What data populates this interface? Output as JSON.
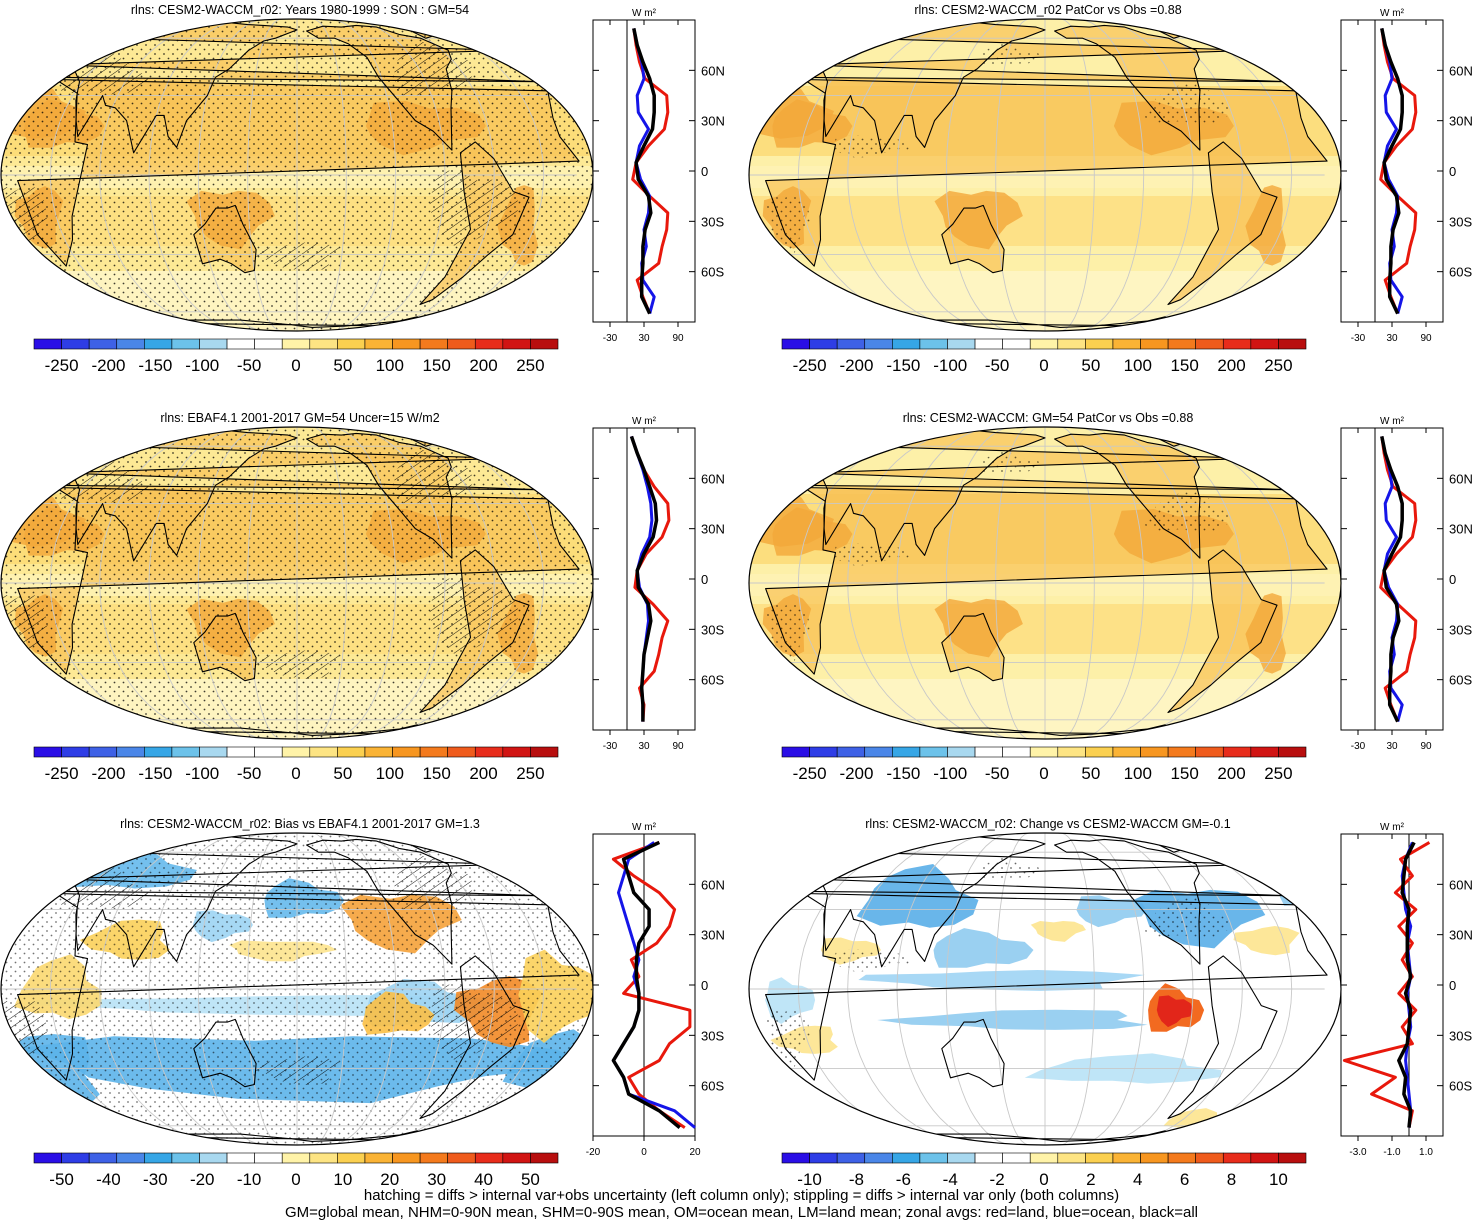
{
  "panels": [
    {
      "id": "p1",
      "title": "rlns: CESM2-WACCM_r02: Years 1980-1999 : SON : GM=54",
      "map_style": "abs",
      "hatching": true,
      "colorbar_labels": [
        "-250",
        "-200",
        "-150",
        "-100",
        "-50",
        "0",
        "50",
        "100",
        "150",
        "200",
        "250"
      ],
      "zonal": {
        "unit": "W m²",
        "xticks": [
          "-30",
          "30",
          "90"
        ],
        "xvals": [
          -30,
          30,
          90
        ],
        "xlim": [
          -60,
          120
        ]
      }
    },
    {
      "id": "p2",
      "title": "rlns: CESM2-WACCM_r02 PatCor vs Obs =0.88",
      "map_style": "abs",
      "hatching": false,
      "colorbar_labels": [
        "-250",
        "-200",
        "-150",
        "-100",
        "-50",
        "0",
        "50",
        "100",
        "150",
        "200",
        "250"
      ],
      "zonal": {
        "unit": "W m²",
        "xticks": [
          "-30",
          "30",
          "90"
        ],
        "xvals": [
          -30,
          30,
          90
        ],
        "xlim": [
          -60,
          120
        ]
      }
    },
    {
      "id": "p3",
      "title": "rlns: EBAF4.1 2001-2017 GM=54 Uncer=15 W/m2",
      "map_style": "abs",
      "hatching": true,
      "colorbar_labels": [
        "-250",
        "-200",
        "-150",
        "-100",
        "-50",
        "0",
        "50",
        "100",
        "150",
        "200",
        "250"
      ],
      "zonal": {
        "unit": "W m²",
        "xticks": [
          "-30",
          "30",
          "90"
        ],
        "xvals": [
          -30,
          30,
          90
        ],
        "xlim": [
          -60,
          120
        ]
      }
    },
    {
      "id": "p4",
      "title": "rlns: CESM2-WACCM: GM=54 PatCor vs Obs =0.88",
      "map_style": "abs",
      "hatching": false,
      "colorbar_labels": [
        "-250",
        "-200",
        "-150",
        "-100",
        "-50",
        "0",
        "50",
        "100",
        "150",
        "200",
        "250"
      ],
      "zonal": {
        "unit": "W m²",
        "xticks": [
          "-30",
          "30",
          "90"
        ],
        "xvals": [
          -30,
          30,
          90
        ],
        "xlim": [
          -60,
          120
        ]
      }
    },
    {
      "id": "p5",
      "title": "rlns: CESM2-WACCM_r02: Bias vs EBAF4.1 2001-2017  GM=1.3",
      "map_style": "bias",
      "hatching": true,
      "colorbar_labels": [
        "-50",
        "-40",
        "-30",
        "-20",
        "-10",
        "0",
        "10",
        "20",
        "30",
        "40",
        "50"
      ],
      "zonal": {
        "unit": "W m²",
        "xticks": [
          "-20",
          "0",
          "20"
        ],
        "xvals": [
          -20,
          0,
          20
        ],
        "xlim": [
          -20,
          20
        ]
      }
    },
    {
      "id": "p6",
      "title": "rlns: CESM2-WACCM_r02: Change vs CESM2-WACCM GM=-0.1",
      "map_style": "change",
      "hatching": false,
      "colorbar_labels": [
        "-10",
        "-8",
        "-6",
        "-4",
        "-2",
        "0",
        "2",
        "4",
        "6",
        "8",
        "10"
      ],
      "zonal": {
        "unit": "W m²",
        "xticks": [
          "-3.0",
          "-1.0",
          "1.0"
        ],
        "xvals": [
          -3,
          -1,
          1
        ],
        "xlim": [
          -4,
          2
        ]
      }
    }
  ],
  "lat_labels": [
    "60N",
    "30N",
    "0",
    "30S",
    "60S"
  ],
  "colorbar_colors": [
    "#2a0ee6",
    "#2e3de6",
    "#3e61e6",
    "#4a86e8",
    "#36a6e6",
    "#6cc2ea",
    "#a8d8ef",
    "#ffffff",
    "#ffffff",
    "#fff3a8",
    "#fde483",
    "#fbd050",
    "#fab335",
    "#f79620",
    "#f47a1d",
    "#ef5b1c",
    "#e82c1b",
    "#d11413",
    "#b80e0e"
  ],
  "series_colors": {
    "land": "#e8180c",
    "ocean": "#1515e8",
    "all": "#000000"
  },
  "footer": [
    "hatching = diffs > internal var+obs uncertainty (left column only); stippling = diffs > internal var only (both columns)",
    "GM=global mean, NHM=0-90N mean, SHM=0-90S mean, OM=ocean mean, LM=land mean; zonal avgs: red=land, blue=ocean, black=all"
  ],
  "chart_data": [
    {
      "type": "line",
      "title": "rlns: CESM2-WACCM_r02: Years 1980-1999 : SON : GM=54",
      "xlabel": "W m²",
      "x_ticks": [
        -30,
        30,
        90
      ],
      "y_ticks": [
        "60N",
        "30N",
        "0",
        "30S",
        "60S"
      ],
      "lat": [
        85,
        75,
        65,
        55,
        45,
        35,
        25,
        15,
        5,
        -5,
        -15,
        -25,
        -35,
        -45,
        -55,
        -65,
        -75,
        -85
      ],
      "series": [
        {
          "name": "land",
          "values": [
            12,
            16,
            22,
            32,
            70,
            72,
            66,
            38,
            16,
            10,
            40,
            72,
            70,
            62,
            56,
            18,
            28,
            40
          ]
        },
        {
          "name": "ocean",
          "values": [
            12,
            18,
            26,
            30,
            18,
            20,
            38,
            22,
            16,
            24,
            40,
            38,
            30,
            34,
            26,
            28,
            48,
            40
          ]
        },
        {
          "name": "all",
          "values": [
            12,
            18,
            28,
            40,
            48,
            48,
            45,
            30,
            16,
            20,
            38,
            42,
            32,
            28,
            28,
            26,
            26,
            40
          ]
        }
      ]
    },
    {
      "type": "line",
      "title": "rlns: CESM2-WACCM_r02 PatCor vs Obs =0.88",
      "xlabel": "W m²",
      "x_ticks": [
        -30,
        30,
        90
      ],
      "y_ticks": [
        "60N",
        "30N",
        "0",
        "30S",
        "60S"
      ],
      "lat": [
        85,
        75,
        65,
        55,
        45,
        35,
        25,
        15,
        5,
        -5,
        -15,
        -25,
        -35,
        -45,
        -55,
        -65,
        -75,
        -85
      ],
      "series": [
        {
          "name": "land",
          "values": [
            12,
            16,
            22,
            32,
            70,
            72,
            66,
            38,
            16,
            10,
            40,
            72,
            70,
            62,
            56,
            18,
            28,
            40
          ]
        },
        {
          "name": "ocean",
          "values": [
            12,
            18,
            26,
            30,
            18,
            20,
            38,
            22,
            16,
            24,
            40,
            38,
            30,
            34,
            26,
            28,
            48,
            40
          ]
        },
        {
          "name": "all",
          "values": [
            12,
            18,
            28,
            40,
            48,
            48,
            45,
            30,
            16,
            20,
            38,
            42,
            32,
            28,
            28,
            26,
            26,
            40
          ]
        }
      ]
    },
    {
      "type": "line",
      "title": "rlns: EBAF4.1 2001-2017 GM=54 Uncer=15 W/m2",
      "xlabel": "W m²",
      "x_ticks": [
        -30,
        30,
        90
      ],
      "y_ticks": [
        "60N",
        "30N",
        "0",
        "30S",
        "60S"
      ],
      "lat": [
        85,
        75,
        65,
        55,
        45,
        35,
        25,
        15,
        5,
        -5,
        -15,
        -25,
        -35,
        -45,
        -55,
        -65,
        -75,
        -85
      ],
      "series": [
        {
          "name": "land",
          "values": [
            8,
            18,
            30,
            48,
            72,
            74,
            62,
            34,
            18,
            14,
            46,
            72,
            62,
            56,
            48,
            22,
            30,
            28
          ]
        },
        {
          "name": "ocean",
          "values": [
            8,
            18,
            28,
            36,
            42,
            44,
            40,
            26,
            18,
            22,
            36,
            38,
            34,
            30,
            28,
            26,
            28,
            28
          ]
        },
        {
          "name": "all",
          "values": [
            8,
            18,
            30,
            40,
            50,
            52,
            46,
            30,
            18,
            20,
            38,
            42,
            36,
            30,
            28,
            26,
            28,
            28
          ]
        }
      ]
    },
    {
      "type": "line",
      "title": "rlns: CESM2-WACCM: GM=54 PatCor vs Obs =0.88",
      "xlabel": "W m²",
      "x_ticks": [
        -30,
        30,
        90
      ],
      "y_ticks": [
        "60N",
        "30N",
        "0",
        "30S",
        "60S"
      ],
      "lat": [
        85,
        75,
        65,
        55,
        45,
        35,
        25,
        15,
        5,
        -5,
        -15,
        -25,
        -35,
        -45,
        -55,
        -65,
        -75,
        -85
      ],
      "series": [
        {
          "name": "land",
          "values": [
            12,
            16,
            22,
            32,
            70,
            72,
            66,
            38,
            16,
            10,
            40,
            72,
            70,
            62,
            56,
            18,
            28,
            40
          ]
        },
        {
          "name": "ocean",
          "values": [
            12,
            18,
            26,
            30,
            18,
            20,
            38,
            22,
            16,
            24,
            40,
            38,
            30,
            34,
            26,
            28,
            48,
            40
          ]
        },
        {
          "name": "all",
          "values": [
            12,
            18,
            28,
            40,
            48,
            48,
            45,
            30,
            16,
            20,
            38,
            42,
            32,
            28,
            28,
            26,
            26,
            40
          ]
        }
      ]
    },
    {
      "type": "line",
      "title": "rlns: CESM2-WACCM_r02: Bias vs EBAF4.1 2001-2017  GM=1.3",
      "xlabel": "W m²",
      "x_ticks": [
        -20,
        0,
        20
      ],
      "y_ticks": [
        "60N",
        "30N",
        "0",
        "30S",
        "60S"
      ],
      "lat": [
        85,
        75,
        65,
        55,
        45,
        35,
        25,
        15,
        5,
        -5,
        -15,
        -25,
        -35,
        -45,
        -55,
        -65,
        -75,
        -85
      ],
      "series": [
        {
          "name": "land",
          "values": [
            6,
            -12,
            -4,
            6,
            12,
            10,
            5,
            -5,
            -2,
            -8,
            18,
            18,
            10,
            6,
            -6,
            -2,
            6,
            16
          ]
        },
        {
          "name": "ocean",
          "values": [
            4,
            -6,
            -8,
            -10,
            -8,
            -6,
            -4,
            -2,
            -4,
            -2,
            -2,
            -4,
            -8,
            -12,
            -8,
            -6,
            12,
            20
          ]
        },
        {
          "name": "all",
          "values": [
            6,
            -8,
            -6,
            -4,
            2,
            2,
            -2,
            -3,
            -3,
            -2,
            -2,
            -4,
            -8,
            -12,
            -8,
            -6,
            6,
            14
          ]
        }
      ]
    },
    {
      "type": "line",
      "title": "rlns: CESM2-WACCM_r02: Change vs CESM2-WACCM GM=-0.1",
      "xlabel": "W m²",
      "x_ticks": [
        -3,
        -1,
        1
      ],
      "y_ticks": [
        "60N",
        "30N",
        "0",
        "30S",
        "60S"
      ],
      "lat": [
        85,
        75,
        65,
        55,
        45,
        35,
        25,
        15,
        5,
        -5,
        -15,
        -25,
        -35,
        -45,
        -55,
        -65,
        -75,
        -85
      ],
      "series": [
        {
          "name": "land",
          "values": [
            1.2,
            -0.5,
            0.2,
            -0.8,
            0.4,
            -0.6,
            0.2,
            -0.4,
            0.2,
            -0.6,
            0.4,
            -0.4,
            0.2,
            -3.8,
            -0.8,
            -2.2,
            0.2,
            0
          ]
        },
        {
          "name": "ocean",
          "values": [
            0.2,
            -0.2,
            -0.4,
            -0.3,
            -0.2,
            0.1,
            -0.1,
            0,
            0.1,
            -0.1,
            0,
            0.1,
            -0.1,
            -0.2,
            -0.1,
            0,
            0.1,
            0
          ]
        },
        {
          "name": "all",
          "values": [
            0.3,
            -0.2,
            -0.3,
            -0.4,
            0,
            -0.1,
            -0.1,
            -0.1,
            0.1,
            -0.2,
            0.1,
            0,
            -0.1,
            -0.6,
            -0.2,
            -0.3,
            0.1,
            0
          ]
        }
      ]
    }
  ]
}
